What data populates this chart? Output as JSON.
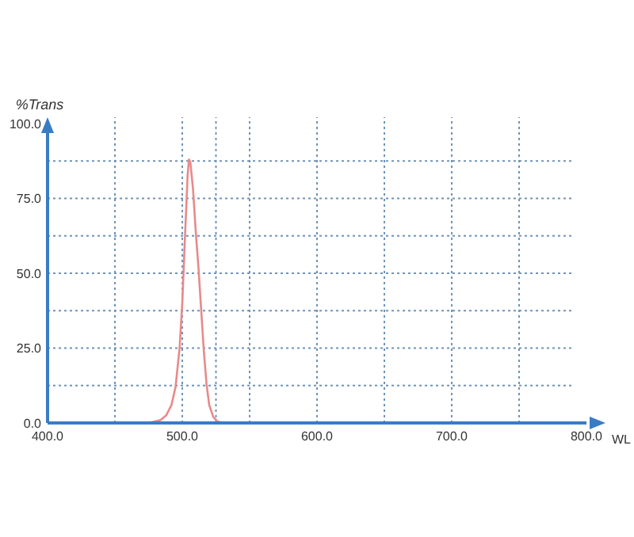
{
  "chart_data": {
    "type": "line",
    "xlabel": "WL",
    "ylabel": "%Trans",
    "x": [
      400,
      470,
      478,
      484,
      488,
      492,
      495,
      498,
      500,
      502,
      504,
      505,
      506,
      508,
      510,
      512,
      514,
      516,
      518,
      520,
      523,
      526,
      530,
      800
    ],
    "series": [
      {
        "color": "#e88a8a",
        "values": [
          0,
          0,
          0.3,
          1,
          2.5,
          6,
          12,
          25,
          40,
          62,
          83,
          88,
          87,
          78,
          64,
          52,
          38,
          24,
          13,
          6,
          2,
          0.5,
          0,
          0
        ]
      }
    ],
    "xlim": [
      400,
      800
    ],
    "ylim": [
      0,
      100
    ],
    "xticks": [
      {
        "value": 400,
        "label": "400.0"
      },
      {
        "value": 450,
        "label": null
      },
      {
        "value": 500,
        "label": "500.0"
      },
      {
        "value": 525,
        "label": null
      },
      {
        "value": 550,
        "label": null
      },
      {
        "value": 600,
        "label": "600.0"
      },
      {
        "value": 650,
        "label": null
      },
      {
        "value": 700,
        "label": "700.0"
      },
      {
        "value": 750,
        "label": null
      },
      {
        "value": 800,
        "label": "800.0"
      }
    ],
    "yticks": [
      {
        "value": 0,
        "label": "0.0"
      },
      {
        "value": 12.5,
        "label": null
      },
      {
        "value": 25,
        "label": "25.0"
      },
      {
        "value": 37.5,
        "label": null
      },
      {
        "value": 50,
        "label": "50.0"
      },
      {
        "value": 62.5,
        "label": null
      },
      {
        "value": 75,
        "label": "75.0"
      },
      {
        "value": 87.5,
        "label": null
      },
      {
        "value": 100,
        "label": "100.0"
      }
    ],
    "grid": true,
    "marker": "none",
    "line_style": "solid"
  }
}
